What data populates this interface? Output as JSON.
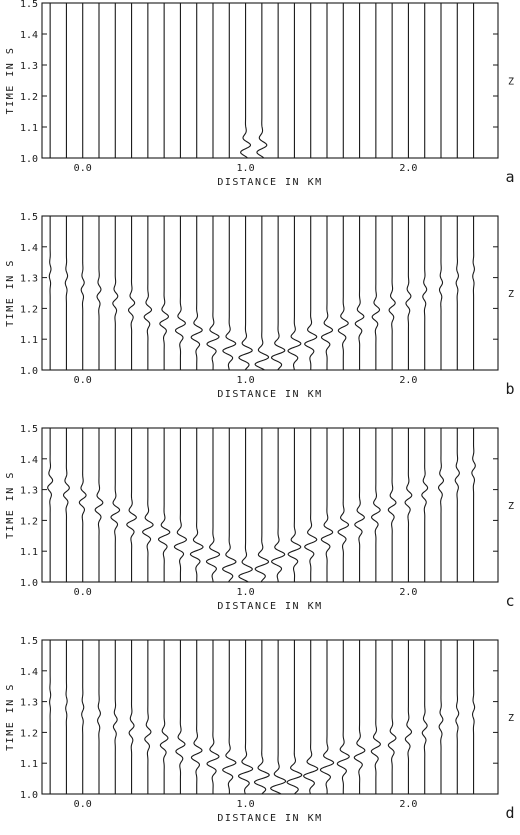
{
  "colors": {
    "ink": "#1a1a1a",
    "paper": "#ffffff"
  },
  "chart_data": [
    {
      "type": "line",
      "panel_label": "a",
      "component_label": "Z",
      "xlabel": "DISTANCE IN KM",
      "ylabel": "TIME IN S",
      "xlim": [
        -0.25,
        2.55
      ],
      "ylim": [
        1.0,
        1.5
      ],
      "x_ticks": [
        "0.0",
        "1.0",
        "2.0"
      ],
      "x_tick_values": [
        0.0,
        1.0,
        2.0
      ],
      "y_ticks": [
        "1.0",
        "1.1",
        "1.2",
        "1.3",
        "1.4",
        "1.5"
      ],
      "y_tick_values": [
        1.0,
        1.1,
        1.2,
        1.3,
        1.4,
        1.5
      ],
      "trace_offsets_km": [
        -0.2,
        -0.1,
        0.0,
        0.1,
        0.2,
        0.3,
        0.4,
        0.5,
        0.6,
        0.7,
        0.8,
        0.9,
        1.0,
        1.1,
        1.2,
        1.3,
        1.4,
        1.5,
        1.6,
        1.7,
        1.8,
        1.9,
        2.0,
        2.1,
        2.2,
        2.3,
        2.4
      ],
      "source_km": 1.05,
      "arrival_moveout_s_per_km": 0.0,
      "arrival_width_km": 0.07,
      "wavelet_amplitude_km": 0.055,
      "wavelet_period_s": 0.05
    },
    {
      "type": "line",
      "panel_label": "b",
      "component_label": "Z",
      "xlabel": "DISTANCE IN KM",
      "ylabel": "TIME IN S",
      "xlim": [
        -0.25,
        2.55
      ],
      "ylim": [
        1.0,
        1.5
      ],
      "x_ticks": [
        "0.0",
        "1.0",
        "2.0"
      ],
      "x_tick_values": [
        0.0,
        1.0,
        2.0
      ],
      "y_ticks": [
        "1.0",
        "1.1",
        "1.2",
        "1.3",
        "1.4",
        "1.5"
      ],
      "y_tick_values": [
        1.0,
        1.1,
        1.2,
        1.3,
        1.4,
        1.5
      ],
      "trace_offsets_km": [
        -0.2,
        -0.1,
        0.0,
        0.1,
        0.2,
        0.3,
        0.4,
        0.5,
        0.6,
        0.7,
        0.8,
        0.9,
        1.0,
        1.1,
        1.2,
        1.3,
        1.4,
        1.5,
        1.6,
        1.7,
        1.8,
        1.9,
        2.0,
        2.1,
        2.2,
        2.3,
        2.4
      ],
      "source_km": 1.1,
      "arrival_moveout_s_per_km": 0.22,
      "arrival_width_km": 0.9,
      "wavelet_amplitude_km": 0.045,
      "wavelet_period_s": 0.05
    },
    {
      "type": "line",
      "panel_label": "c",
      "component_label": "Z",
      "xlabel": "DISTANCE IN KM",
      "ylabel": "TIME IN S",
      "xlim": [
        -0.25,
        2.55
      ],
      "ylim": [
        1.0,
        1.5
      ],
      "x_ticks": [
        "0.0",
        "1.0",
        "2.0"
      ],
      "x_tick_values": [
        0.0,
        1.0,
        2.0
      ],
      "y_ticks": [
        "1.0",
        "1.1",
        "1.2",
        "1.3",
        "1.4",
        "1.5"
      ],
      "y_tick_values": [
        1.0,
        1.1,
        1.2,
        1.3,
        1.4,
        1.5
      ],
      "trace_offsets_km": [
        -0.2,
        -0.1,
        0.0,
        0.1,
        0.2,
        0.3,
        0.4,
        0.5,
        0.6,
        0.7,
        0.8,
        0.9,
        1.0,
        1.1,
        1.2,
        1.3,
        1.4,
        1.5,
        1.6,
        1.7,
        1.8,
        1.9,
        2.0,
        2.1,
        2.2,
        2.3,
        2.4
      ],
      "source_km": 1.0,
      "arrival_moveout_s_per_km": 0.24,
      "arrival_width_km": 1.2,
      "wavelet_amplitude_km": 0.045,
      "wavelet_period_s": 0.05
    },
    {
      "type": "line",
      "panel_label": "d",
      "component_label": "Z",
      "xlabel": "DISTANCE IN KM",
      "ylabel": "TIME IN S",
      "xlim": [
        -0.25,
        2.55
      ],
      "ylim": [
        1.0,
        1.5
      ],
      "x_ticks": [
        "0.0",
        "1.0",
        "2.0"
      ],
      "x_tick_values": [
        0.0,
        1.0,
        2.0
      ],
      "y_ticks": [
        "1.0",
        "1.1",
        "1.2",
        "1.3",
        "1.4",
        "1.5"
      ],
      "y_tick_values": [
        1.0,
        1.1,
        1.2,
        1.3,
        1.4,
        1.5
      ],
      "trace_offsets_km": [
        -0.2,
        -0.1,
        0.0,
        0.1,
        0.2,
        0.3,
        0.4,
        0.5,
        0.6,
        0.7,
        0.8,
        0.9,
        1.0,
        1.1,
        1.2,
        1.3,
        1.4,
        1.5,
        1.6,
        1.7,
        1.8,
        1.9,
        2.0,
        2.1,
        2.2,
        2.3,
        2.4
      ],
      "source_km": 1.2,
      "arrival_moveout_s_per_km": 0.2,
      "arrival_width_km": 0.85,
      "wavelet_amplitude_km": 0.05,
      "wavelet_period_s": 0.05
    }
  ]
}
